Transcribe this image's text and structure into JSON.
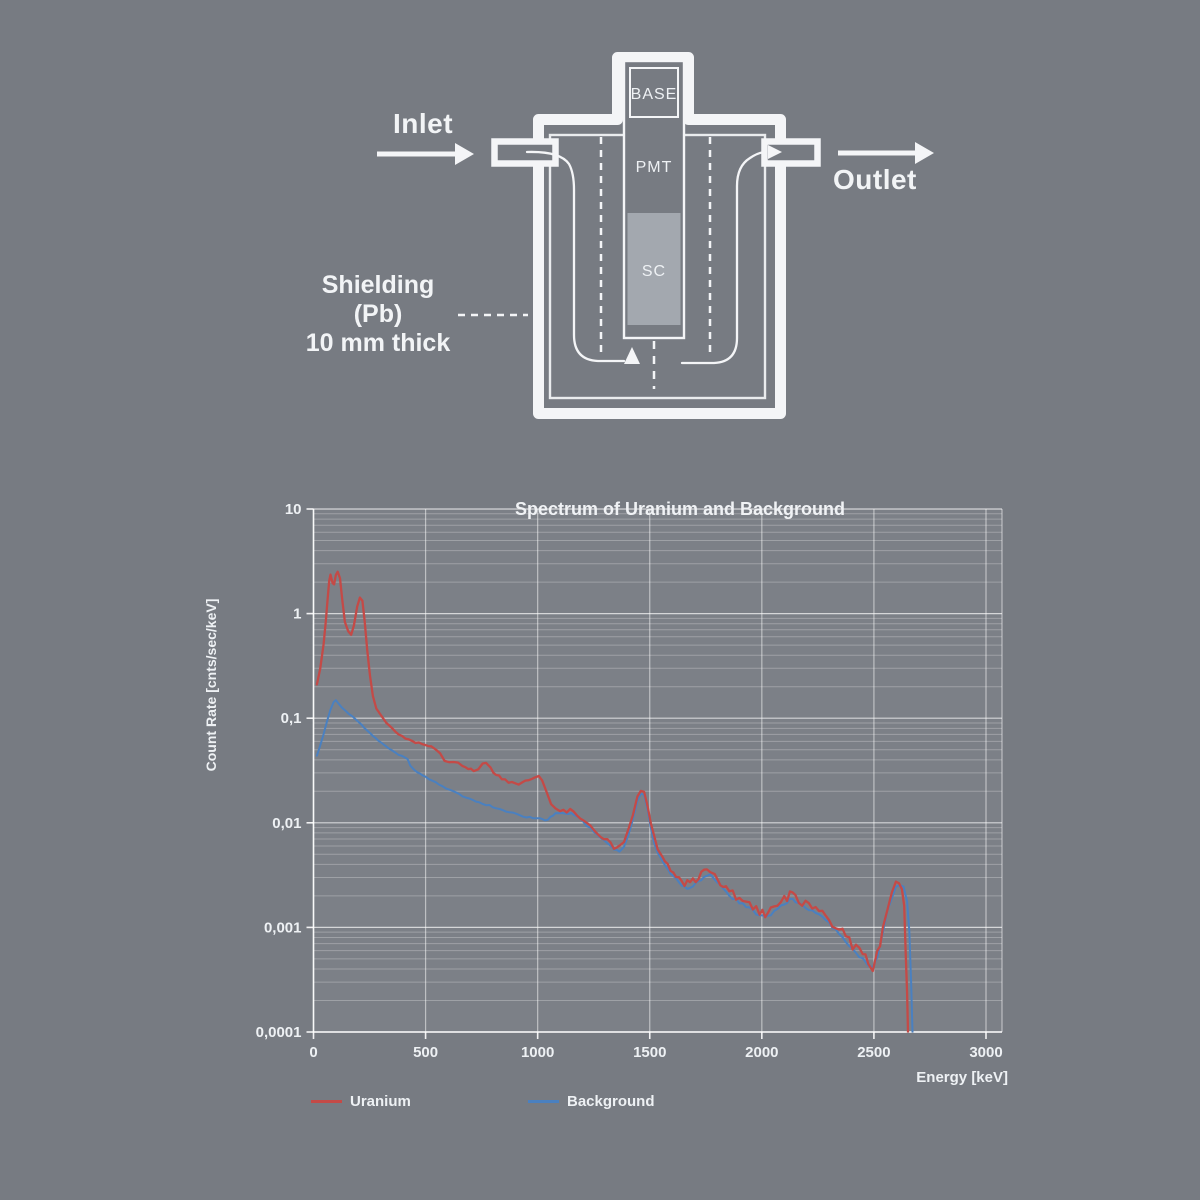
{
  "page": {
    "background": "#777b82"
  },
  "diagram": {
    "labels": {
      "inlet": "Inlet",
      "outlet": "Outlet",
      "shielding_line1": "Shielding",
      "shielding_line2": "(Pb)",
      "shielding_line3": "10 mm thick",
      "base": "BASE",
      "pmt": "PMT",
      "sc": "SC"
    },
    "colors": {
      "stroke_white": "#f4f5f7",
      "sc_fill": "#a3a8af",
      "vessel_fill": "#777b82"
    }
  },
  "chart_data": {
    "type": "line",
    "title": "Spectrum of Uranium and Background",
    "xlabel": "Energy [keV]",
    "ylabel": "Count Rate [cnts/sec/keV]",
    "xlim": [
      0,
      3000
    ],
    "ylim": [
      0.0001,
      10
    ],
    "x_ticks": [
      0,
      500,
      1000,
      1500,
      2000,
      2500,
      3000
    ],
    "x_tick_labels": [
      "0",
      "500",
      "1000",
      "1500",
      "2000",
      "2500",
      "3000"
    ],
    "y_tick_values": [
      10,
      1,
      0.1,
      0.01,
      0.001,
      0.0001
    ],
    "y_tick_labels": [
      "10",
      "1",
      "0,1",
      "0,01",
      "0,001",
      "0,0001"
    ],
    "grid": "horizontal log major+minor, vertical every 500 keV",
    "legend_position": "bottom",
    "series": [
      {
        "name": "Uranium",
        "color": "#c44a47",
        "points": [
          [
            15,
            0.21
          ],
          [
            30,
            0.3
          ],
          [
            45,
            0.52
          ],
          [
            55,
            0.85
          ],
          [
            62,
            1.3
          ],
          [
            70,
            2.1
          ],
          [
            76,
            2.35
          ],
          [
            85,
            2.0
          ],
          [
            92,
            1.9
          ],
          [
            100,
            2.3
          ],
          [
            108,
            2.55
          ],
          [
            118,
            2.2
          ],
          [
            128,
            1.35
          ],
          [
            140,
            0.85
          ],
          [
            155,
            0.68
          ],
          [
            168,
            0.62
          ],
          [
            180,
            0.78
          ],
          [
            195,
            1.18
          ],
          [
            207,
            1.45
          ],
          [
            218,
            1.3
          ],
          [
            228,
            0.85
          ],
          [
            240,
            0.45
          ],
          [
            252,
            0.26
          ],
          [
            265,
            0.165
          ],
          [
            280,
            0.125
          ],
          [
            300,
            0.105
          ],
          [
            325,
            0.09
          ],
          [
            350,
            0.08
          ],
          [
            380,
            0.07
          ],
          [
            410,
            0.064
          ],
          [
            440,
            0.06
          ],
          [
            470,
            0.058
          ],
          [
            500,
            0.056
          ],
          [
            525,
            0.054
          ],
          [
            545,
            0.05
          ],
          [
            565,
            0.045
          ],
          [
            585,
            0.04
          ],
          [
            605,
            0.0375
          ],
          [
            625,
            0.0385
          ],
          [
            645,
            0.0375
          ],
          [
            665,
            0.035
          ],
          [
            690,
            0.0335
          ],
          [
            715,
            0.032
          ],
          [
            735,
            0.033
          ],
          [
            755,
            0.036
          ],
          [
            770,
            0.0365
          ],
          [
            790,
            0.033
          ],
          [
            815,
            0.029
          ],
          [
            840,
            0.026
          ],
          [
            870,
            0.0245
          ],
          [
            900,
            0.0235
          ],
          [
            930,
            0.024
          ],
          [
            960,
            0.0255
          ],
          [
            985,
            0.0275
          ],
          [
            1005,
            0.028
          ],
          [
            1020,
            0.026
          ],
          [
            1040,
            0.019
          ],
          [
            1060,
            0.015
          ],
          [
            1080,
            0.0138
          ],
          [
            1100,
            0.0133
          ],
          [
            1130,
            0.0131
          ],
          [
            1160,
            0.0128
          ],
          [
            1190,
            0.0115
          ],
          [
            1220,
            0.01
          ],
          [
            1250,
            0.0088
          ],
          [
            1280,
            0.0077
          ],
          [
            1310,
            0.0067
          ],
          [
            1340,
            0.006
          ],
          [
            1365,
            0.0057
          ],
          [
            1385,
            0.0065
          ],
          [
            1405,
            0.0085
          ],
          [
            1425,
            0.012
          ],
          [
            1445,
            0.0175
          ],
          [
            1460,
            0.021
          ],
          [
            1475,
            0.0205
          ],
          [
            1490,
            0.015
          ],
          [
            1505,
            0.01
          ],
          [
            1520,
            0.0072
          ],
          [
            1535,
            0.0058
          ],
          [
            1555,
            0.0048
          ],
          [
            1580,
            0.004
          ],
          [
            1605,
            0.0034
          ],
          [
            1630,
            0.0029
          ],
          [
            1655,
            0.00265
          ],
          [
            1680,
            0.0027
          ],
          [
            1705,
            0.0029
          ],
          [
            1730,
            0.0032
          ],
          [
            1755,
            0.00355
          ],
          [
            1770,
            0.0036
          ],
          [
            1790,
            0.0031
          ],
          [
            1815,
            0.0027
          ],
          [
            1840,
            0.0024
          ],
          [
            1870,
            0.0021
          ],
          [
            1900,
            0.0019
          ],
          [
            1930,
            0.0017
          ],
          [
            1960,
            0.00155
          ],
          [
            1990,
            0.0014
          ],
          [
            2015,
            0.00135
          ],
          [
            2040,
            0.00145
          ],
          [
            2070,
            0.00165
          ],
          [
            2100,
            0.00185
          ],
          [
            2125,
            0.00205
          ],
          [
            2150,
            0.00195
          ],
          [
            2180,
            0.00175
          ],
          [
            2210,
            0.00165
          ],
          [
            2240,
            0.0015
          ],
          [
            2270,
            0.00135
          ],
          [
            2300,
            0.0012
          ],
          [
            2330,
            0.00103
          ],
          [
            2360,
            0.00088
          ],
          [
            2390,
            0.00073
          ],
          [
            2420,
            0.00062
          ],
          [
            2450,
            0.00053
          ],
          [
            2475,
            0.00046
          ],
          [
            2495,
            0.00043
          ],
          [
            2515,
            0.00055
          ],
          [
            2540,
            0.00095
          ],
          [
            2560,
            0.0015
          ],
          [
            2580,
            0.00205
          ],
          [
            2598,
            0.00255
          ],
          [
            2612,
            0.00268
          ],
          [
            2625,
            0.00245
          ],
          [
            2635,
            0.0015
          ],
          [
            2642,
            0.0006
          ],
          [
            2648,
            0.00022
          ],
          [
            2652,
            0.0001
          ]
        ]
      },
      {
        "name": "Background",
        "color": "#4a80c0",
        "points": [
          [
            15,
            0.044
          ],
          [
            30,
            0.055
          ],
          [
            45,
            0.07
          ],
          [
            60,
            0.092
          ],
          [
            75,
            0.12
          ],
          [
            90,
            0.142
          ],
          [
            100,
            0.148
          ],
          [
            112,
            0.138
          ],
          [
            125,
            0.128
          ],
          [
            140,
            0.12
          ],
          [
            158,
            0.11
          ],
          [
            175,
            0.103
          ],
          [
            195,
            0.094
          ],
          [
            215,
            0.086
          ],
          [
            240,
            0.076
          ],
          [
            265,
            0.068
          ],
          [
            290,
            0.061
          ],
          [
            320,
            0.0545
          ],
          [
            350,
            0.049
          ],
          [
            380,
            0.0445
          ],
          [
            405,
            0.0425
          ],
          [
            420,
            0.041
          ],
          [
            432,
            0.035
          ],
          [
            450,
            0.032
          ],
          [
            475,
            0.0295
          ],
          [
            500,
            0.0275
          ],
          [
            530,
            0.0252
          ],
          [
            560,
            0.0232
          ],
          [
            590,
            0.0215
          ],
          [
            620,
            0.02
          ],
          [
            650,
            0.0187
          ],
          [
            680,
            0.0175
          ],
          [
            710,
            0.0165
          ],
          [
            740,
            0.0157
          ],
          [
            770,
            0.0149
          ],
          [
            800,
            0.0142
          ],
          [
            830,
            0.0135
          ],
          [
            860,
            0.0129
          ],
          [
            890,
            0.0123
          ],
          [
            920,
            0.0118
          ],
          [
            950,
            0.0114
          ],
          [
            980,
            0.0112
          ],
          [
            1010,
            0.0109
          ],
          [
            1045,
            0.0106
          ],
          [
            1080,
            0.0125
          ],
          [
            1110,
            0.0126
          ],
          [
            1150,
            0.0122
          ],
          [
            1190,
            0.0108
          ],
          [
            1220,
            0.0094
          ],
          [
            1250,
            0.0083
          ],
          [
            1280,
            0.0072
          ],
          [
            1310,
            0.0063
          ],
          [
            1340,
            0.0056
          ],
          [
            1365,
            0.0053
          ],
          [
            1385,
            0.006
          ],
          [
            1405,
            0.0078
          ],
          [
            1425,
            0.011
          ],
          [
            1445,
            0.016
          ],
          [
            1460,
            0.019
          ],
          [
            1475,
            0.0185
          ],
          [
            1490,
            0.0135
          ],
          [
            1505,
            0.009
          ],
          [
            1520,
            0.0065
          ],
          [
            1535,
            0.0053
          ],
          [
            1555,
            0.0044
          ],
          [
            1580,
            0.0036
          ],
          [
            1605,
            0.0031
          ],
          [
            1630,
            0.0027
          ],
          [
            1655,
            0.0024
          ],
          [
            1680,
            0.0024
          ],
          [
            1705,
            0.0026
          ],
          [
            1730,
            0.0029
          ],
          [
            1755,
            0.0032
          ],
          [
            1770,
            0.0033
          ],
          [
            1790,
            0.0028
          ],
          [
            1815,
            0.0025
          ],
          [
            1840,
            0.0022
          ],
          [
            1870,
            0.0019
          ],
          [
            1900,
            0.00175
          ],
          [
            1930,
            0.00158
          ],
          [
            1960,
            0.00143
          ],
          [
            1990,
            0.0013
          ],
          [
            2015,
            0.00124
          ],
          [
            2040,
            0.00133
          ],
          [
            2070,
            0.0015
          ],
          [
            2100,
            0.00168
          ],
          [
            2125,
            0.00185
          ],
          [
            2150,
            0.00178
          ],
          [
            2180,
            0.0016
          ],
          [
            2210,
            0.0015
          ],
          [
            2240,
            0.00137
          ],
          [
            2270,
            0.00124
          ],
          [
            2300,
            0.0011
          ],
          [
            2330,
            0.00094
          ],
          [
            2360,
            0.0008
          ],
          [
            2390,
            0.00067
          ],
          [
            2420,
            0.00057
          ],
          [
            2450,
            0.00049
          ],
          [
            2475,
            0.00043
          ],
          [
            2495,
            0.0004
          ],
          [
            2515,
            0.00052
          ],
          [
            2540,
            0.0009
          ],
          [
            2560,
            0.00142
          ],
          [
            2580,
            0.00195
          ],
          [
            2598,
            0.0024
          ],
          [
            2615,
            0.00255
          ],
          [
            2632,
            0.0024
          ],
          [
            2648,
            0.0018
          ],
          [
            2658,
            0.0009
          ],
          [
            2666,
            0.0003
          ],
          [
            2672,
            0.0001
          ]
        ]
      }
    ]
  }
}
